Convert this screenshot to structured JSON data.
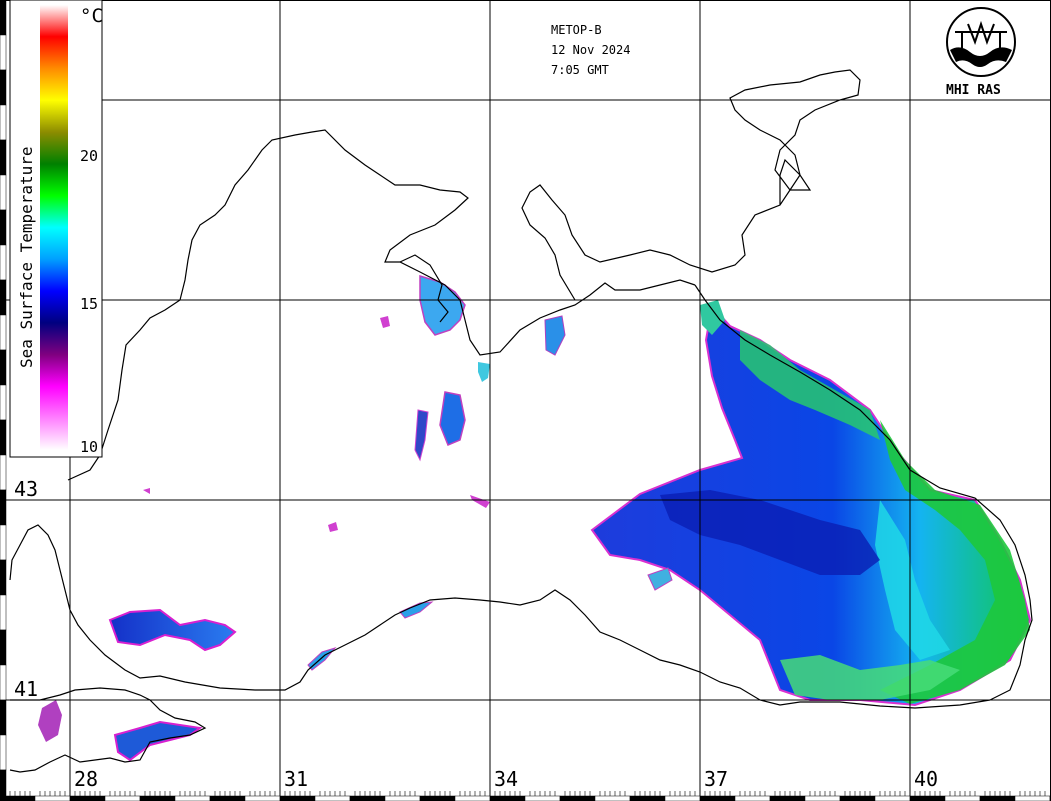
{
  "header": {
    "satellite": "METOP-B",
    "date": "12 Nov 2024",
    "time": "7:05 GMT"
  },
  "logo": {
    "text": "MHI RAS",
    "icon": "mhi-ras-emblem-icon"
  },
  "legend": {
    "title": "Sea Surface Temperature",
    "unit": "°C",
    "ticks": [
      "20",
      "15",
      "10"
    ],
    "stops": [
      {
        "t": 24,
        "color": "#ffffff"
      },
      {
        "t": 23,
        "color": "#ff0000"
      },
      {
        "t": 22,
        "color": "#ff8c00"
      },
      {
        "t": 21,
        "color": "#ffff00"
      },
      {
        "t": 20,
        "color": "#8c8c00"
      },
      {
        "t": 19,
        "color": "#008000"
      },
      {
        "t": 18,
        "color": "#00ff00"
      },
      {
        "t": 17,
        "color": "#00ffff"
      },
      {
        "t": 16,
        "color": "#00a0ff"
      },
      {
        "t": 15,
        "color": "#0000ff"
      },
      {
        "t": 14,
        "color": "#000080"
      },
      {
        "t": 13,
        "color": "#800080"
      },
      {
        "t": 12,
        "color": "#ff00ff"
      },
      {
        "t": 10,
        "color": "#ffffff"
      }
    ]
  },
  "grid": {
    "longitude_labels": [
      "28",
      "31",
      "34",
      "37",
      "40"
    ],
    "latitude_labels": [
      "43",
      "41"
    ]
  },
  "colors": {
    "coastline": "#000000",
    "grid": "#000000",
    "warm_water": "#00c83c",
    "mid_water": "#00c8ff",
    "cool_water": "#0a3cdc",
    "cold_fringe": "#ff00ff"
  }
}
